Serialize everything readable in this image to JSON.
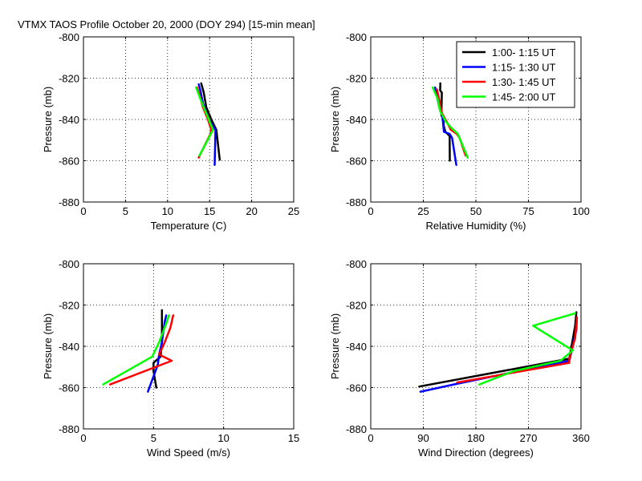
{
  "figure_title": "VTMX TAOS Profile   October 20, 2000 (DOY 294) [15-min mean]",
  "legend": {
    "placement": "top-right of second panel",
    "entries": [
      {
        "label": "1:00- 1:15 UT",
        "color": "#000000"
      },
      {
        "label": "1:15- 1:30 UT",
        "color": "#0000ff"
      },
      {
        "label": "1:30- 1:45 UT",
        "color": "#ff0000"
      },
      {
        "label": "1:45- 2:00 UT",
        "color": "#00ff00"
      }
    ]
  },
  "chart_data": [
    {
      "type": "line",
      "xlabel": "Temperature (C)",
      "ylabel": "Pressure (mb)",
      "xlim": [
        0,
        25
      ],
      "ylim": [
        -880,
        -800
      ],
      "xticks": [
        0,
        5,
        10,
        15,
        20,
        25
      ],
      "xtick_labels": [
        "0",
        "5",
        "10",
        "15",
        "20",
        "25"
      ],
      "yticks": [
        -880,
        -860,
        -840,
        -820,
        -800
      ],
      "ytick_labels": [
        "-880",
        "-860",
        "-840",
        "-820",
        "-800"
      ],
      "grid": true,
      "series": [
        {
          "name": "1:00- 1:15 UT",
          "color": "#000000",
          "points": [
            [
              16.2,
              -859.5
            ],
            [
              15.8,
              -845
            ],
            [
              15.2,
              -840
            ],
            [
              14.6,
              -834
            ],
            [
              14.3,
              -827
            ],
            [
              14.0,
              -822.5
            ]
          ]
        },
        {
          "name": "1:15- 1:30 UT",
          "color": "#0000ff",
          "points": [
            [
              15.6,
              -862
            ],
            [
              15.7,
              -845
            ],
            [
              14.9,
              -840
            ],
            [
              14.2,
              -832
            ],
            [
              13.9,
              -826
            ],
            [
              13.7,
              -823
            ]
          ]
        },
        {
          "name": "1:30- 1:45 UT",
          "color": "#ff0000",
          "points": [
            [
              13.7,
              -858.5
            ],
            [
              15.1,
              -847
            ],
            [
              15.2,
              -845
            ],
            [
              14.8,
              -840
            ],
            [
              14.2,
              -834
            ],
            [
              13.8,
              -828
            ],
            [
              13.5,
              -824.5
            ]
          ]
        },
        {
          "name": "1:45- 2:00 UT",
          "color": "#00ff00",
          "points": [
            [
              13.8,
              -857.5
            ],
            [
              15.4,
              -845
            ],
            [
              15.0,
              -841
            ],
            [
              14.4,
              -835
            ],
            [
              13.9,
              -830
            ],
            [
              13.4,
              -824.5
            ]
          ]
        }
      ]
    },
    {
      "type": "line",
      "xlabel": "Relative Humidity (%)",
      "ylabel": "Pressure (mb)",
      "xlim": [
        0,
        100
      ],
      "ylim": [
        -880,
        -800
      ],
      "xticks": [
        0,
        25,
        50,
        75,
        100
      ],
      "xtick_labels": [
        "0",
        "25",
        "50",
        "75",
        "100"
      ],
      "yticks": [
        -880,
        -860,
        -840,
        -820,
        -800
      ],
      "ytick_labels": [
        "-880",
        "-860",
        "-840",
        "-820",
        "-800"
      ],
      "grid": true,
      "series": [
        {
          "name": "1:00- 1:15 UT",
          "color": "#000000",
          "points": [
            [
              37.6,
              -860
            ],
            [
              37.5,
              -848
            ],
            [
              35.5,
              -846
            ],
            [
              34.7,
              -843
            ],
            [
              34.6,
              -840
            ],
            [
              33.6,
              -838
            ],
            [
              33.8,
              -827
            ],
            [
              33.0,
              -826
            ],
            [
              33.1,
              -822.5
            ]
          ]
        },
        {
          "name": "1:15- 1:30 UT",
          "color": "#0000ff",
          "points": [
            [
              40.7,
              -862
            ],
            [
              38.7,
              -849
            ],
            [
              37.5,
              -847
            ],
            [
              34.8,
              -846
            ],
            [
              34.0,
              -838
            ],
            [
              32.6,
              -834
            ],
            [
              31.5,
              -829
            ],
            [
              30.6,
              -824.5
            ]
          ]
        },
        {
          "name": "1:30- 1:45 UT",
          "color": "#ff0000",
          "points": [
            [
              45.1,
              -857.5
            ],
            [
              42.3,
              -849
            ],
            [
              40.9,
              -847
            ],
            [
              38.1,
              -845
            ],
            [
              36.6,
              -842
            ],
            [
              33.9,
              -837
            ],
            [
              32.5,
              -830
            ],
            [
              31.5,
              -825.5
            ]
          ]
        },
        {
          "name": "1:45- 2:00 UT",
          "color": "#00ff00",
          "points": [
            [
              46.1,
              -858.5
            ],
            [
              41.4,
              -847
            ],
            [
              38.3,
              -844
            ],
            [
              35.7,
              -841
            ],
            [
              33.0,
              -836
            ],
            [
              31.8,
              -830
            ],
            [
              29.5,
              -824.5
            ]
          ]
        }
      ]
    },
    {
      "type": "line",
      "xlabel": "Wind Speed (m/s)",
      "ylabel": "Pressure (mb)",
      "xlim": [
        0,
        15
      ],
      "ylim": [
        -880,
        -800
      ],
      "xticks": [
        0,
        5,
        10,
        15
      ],
      "xtick_labels": [
        "0",
        "5",
        "10",
        "15"
      ],
      "yticks": [
        -880,
        -860,
        -840,
        -820,
        -800
      ],
      "ytick_labels": [
        "-880",
        "-860",
        "-840",
        "-820",
        "-800"
      ],
      "grid": true,
      "series": [
        {
          "name": "1:00- 1:15 UT",
          "color": "#000000",
          "points": [
            [
              5.2,
              -860
            ],
            [
              5.0,
              -852
            ],
            [
              5.0,
              -848
            ],
            [
              5.5,
              -845
            ],
            [
              5.6,
              -838
            ],
            [
              5.6,
              -826
            ],
            [
              5.6,
              -822.5
            ]
          ]
        },
        {
          "name": "1:15- 1:30 UT",
          "color": "#0000ff",
          "points": [
            [
              4.6,
              -862
            ],
            [
              5.3,
              -849
            ],
            [
              5.4,
              -844
            ],
            [
              5.6,
              -838
            ],
            [
              5.8,
              -828
            ],
            [
              5.9,
              -825
            ]
          ]
        },
        {
          "name": "1:30- 1:45 UT",
          "color": "#ff0000",
          "points": [
            [
              1.9,
              -858.5
            ],
            [
              6.3,
              -847
            ],
            [
              5.4,
              -844
            ],
            [
              5.8,
              -838
            ],
            [
              6.2,
              -831
            ],
            [
              6.4,
              -825
            ]
          ]
        },
        {
          "name": "1:45- 2:00 UT",
          "color": "#00ff00",
          "points": [
            [
              1.4,
              -858.5
            ],
            [
              4.9,
              -845
            ],
            [
              5.4,
              -838
            ],
            [
              5.9,
              -829
            ],
            [
              6.1,
              -825
            ]
          ]
        }
      ]
    },
    {
      "type": "line",
      "xlabel": "Wind Direction (degrees)",
      "ylabel": "Pressure (mb)",
      "xlim": [
        0,
        360
      ],
      "ylim": [
        -880,
        -800
      ],
      "xticks": [
        0,
        90,
        180,
        270,
        360
      ],
      "xtick_labels": [
        "0",
        "90",
        "180",
        "270",
        "360"
      ],
      "yticks": [
        -880,
        -860,
        -840,
        -820,
        -800
      ],
      "ytick_labels": [
        "-880",
        "-860",
        "-840",
        "-820",
        "-800"
      ],
      "grid": true,
      "series": [
        {
          "name": "1:00- 1:15 UT",
          "color": "#000000",
          "points": [
            [
              83,
              -859.5
            ],
            [
              340,
              -846
            ],
            [
              345,
              -838
            ],
            [
              350,
              -830
            ],
            [
              352,
              -823.5
            ]
          ]
        },
        {
          "name": "1:15- 1:30 UT",
          "color": "#0000ff",
          "points": [
            [
              85,
              -862
            ],
            [
              150,
              -858
            ],
            [
              340,
              -847
            ],
            [
              346,
              -840
            ],
            [
              352,
              -832
            ],
            [
              353,
              -826
            ]
          ]
        },
        {
          "name": "1:30- 1:45 UT",
          "color": "#ff0000",
          "points": [
            [
              148,
              -857.5
            ],
            [
              340,
              -848
            ],
            [
              340,
              -846
            ],
            [
              350,
              -836
            ],
            [
              353,
              -826
            ]
          ]
        },
        {
          "name": "1:45- 2:00 UT",
          "color": "#00ff00",
          "points": [
            [
              186,
              -858.5
            ],
            [
              245,
              -852
            ],
            [
              325,
              -847
            ],
            [
              346,
              -842
            ],
            [
              278,
              -830
            ],
            [
              350,
              -824
            ]
          ]
        }
      ]
    }
  ]
}
